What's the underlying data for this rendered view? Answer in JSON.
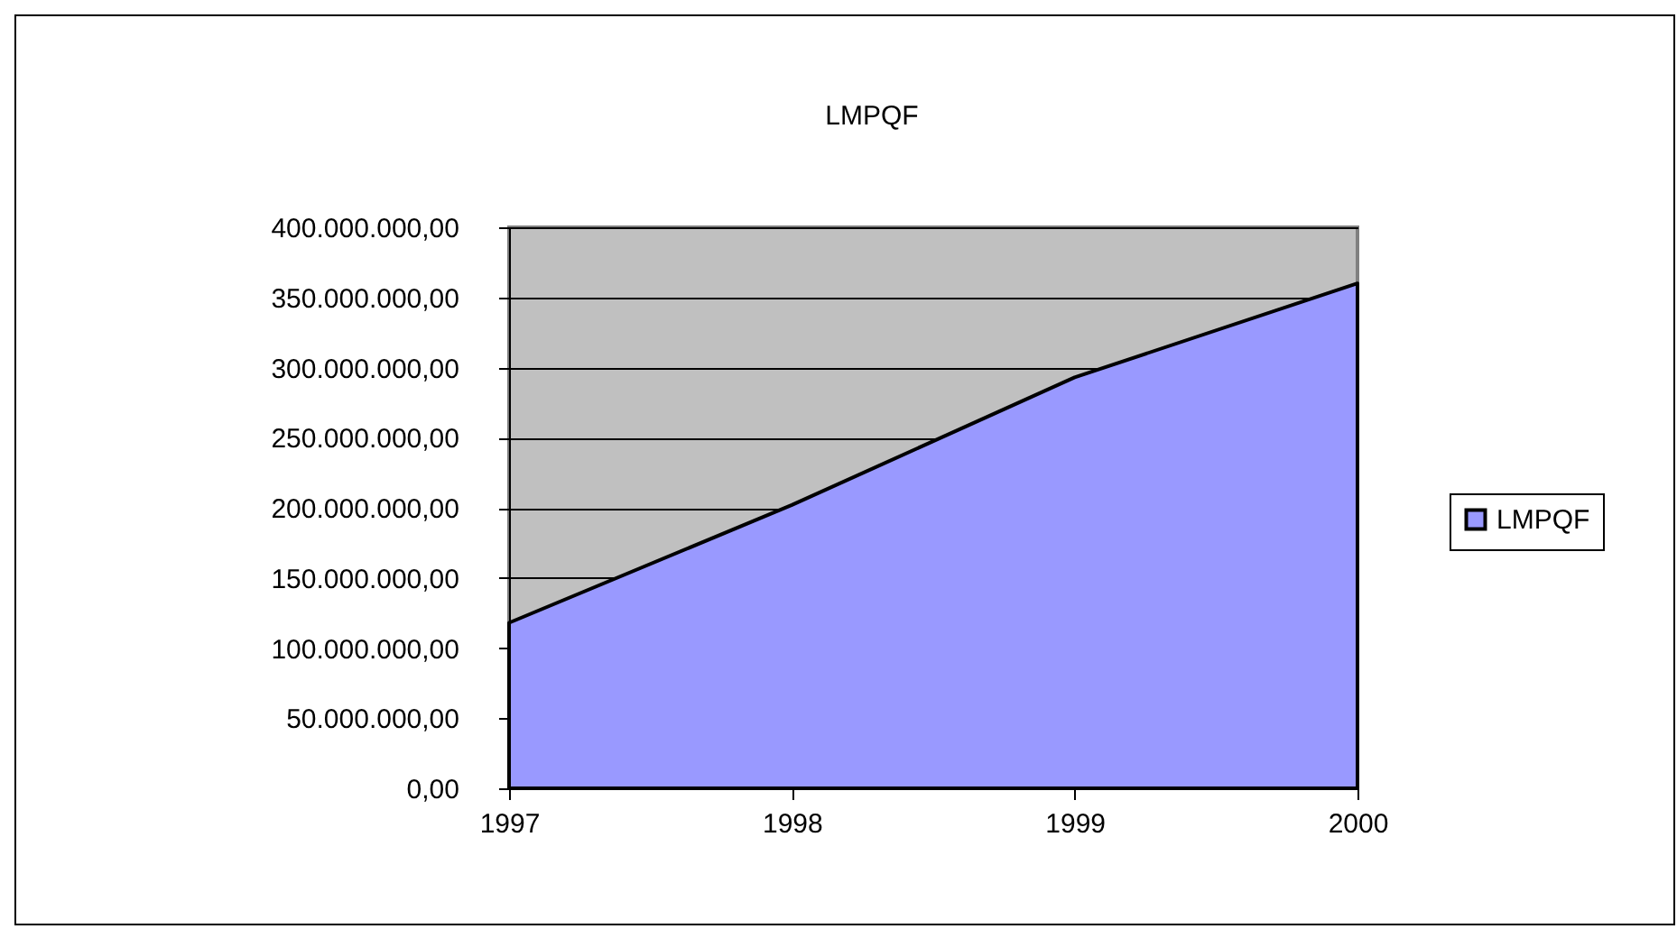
{
  "chart_data": {
    "type": "area",
    "title": "LMPQF",
    "categories": [
      "1997",
      "1998",
      "1999",
      "2000"
    ],
    "series": [
      {
        "name": "LMPQF",
        "color": "#9999ff",
        "values": [
          118000000,
          202000000,
          293000000,
          360000000
        ]
      }
    ],
    "ylim": [
      0,
      400000000
    ],
    "yticks": [
      {
        "value": 0,
        "label": "0,00"
      },
      {
        "value": 50000000,
        "label": "50.000.000,00"
      },
      {
        "value": 100000000,
        "label": "100.000.000,00"
      },
      {
        "value": 150000000,
        "label": "150.000.000,00"
      },
      {
        "value": 200000000,
        "label": "200.000.000,00"
      },
      {
        "value": 250000000,
        "label": "250.000.000,00"
      },
      {
        "value": 300000000,
        "label": "300.000.000,00"
      },
      {
        "value": 350000000,
        "label": "350.000.000,00"
      },
      {
        "value": 400000000,
        "label": "400.000.000,00"
      }
    ],
    "grid": "y",
    "legend": "right"
  }
}
